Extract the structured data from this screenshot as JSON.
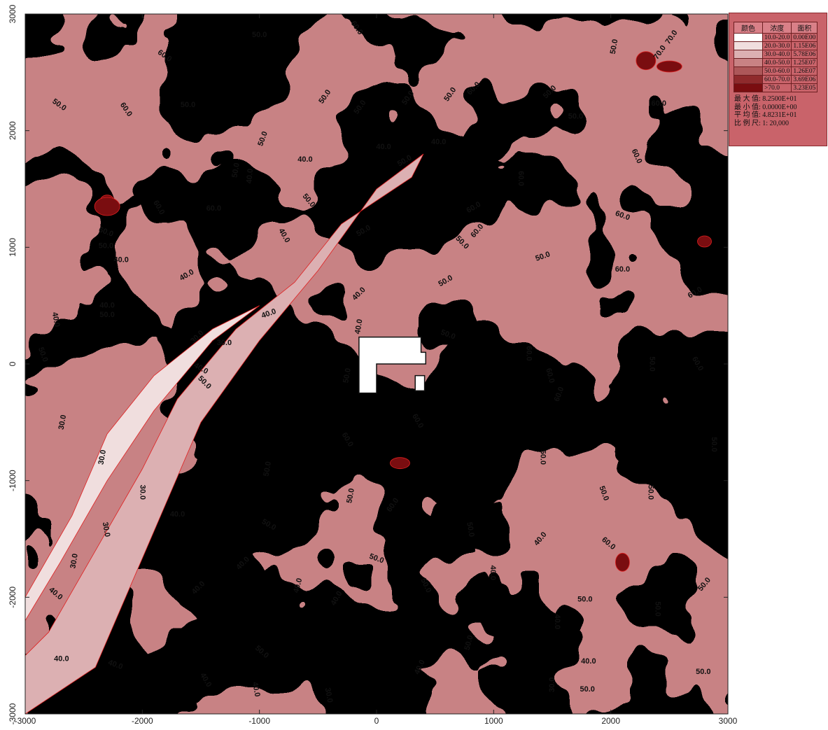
{
  "chart_data": {
    "type": "heatmap",
    "title": "",
    "xlabel": "",
    "ylabel": "",
    "xlim": [
      -3000,
      3000
    ],
    "ylim": [
      -3000,
      3000
    ],
    "x_ticks": [
      "-3000",
      "-2000",
      "-1000",
      "0",
      "1000",
      "2000",
      "3000"
    ],
    "y_ticks": [
      "-3000",
      "-2000",
      "-1000",
      "0",
      "1000",
      "2000",
      "3000"
    ],
    "x_tick_values": [
      -3000,
      -2000,
      -1000,
      0,
      1000,
      2000,
      3000
    ],
    "y_tick_values": [
      -3000,
      -2000,
      -1000,
      0,
      1000,
      2000,
      3000
    ],
    "contour_levels": [
      10,
      20,
      30,
      40,
      50,
      60,
      70
    ],
    "legend": {
      "placement": "top-right",
      "headers": [
        "颜色",
        "浓度",
        "面积"
      ],
      "rows": [
        {
          "range": "10.0-20.0",
          "area": "0.00E00",
          "color": "#ffffff"
        },
        {
          "range": "20.0-30.0",
          "area": "1.15E06",
          "color": "#f0dede"
        },
        {
          "range": "30.0-40.0",
          "area": "5.78E06",
          "color": "#dcb0b2"
        },
        {
          "range": "40.0-50.0",
          "area": "1.25E07",
          "color": "#c88284"
        },
        {
          "range": "50.0-60.0",
          "area": "1.26E07",
          "color": "#ad5759"
        },
        {
          "range": "60.0-70.0",
          "area": "3.69E06",
          "color": "#8f2a2c"
        },
        {
          "range": ">70.0",
          "area": "3.23E05",
          "color": "#7a0d10"
        }
      ],
      "stats": [
        {
          "label": "最 大 值",
          "value": "8.2500E+01"
        },
        {
          "label": "最 小 值",
          "value": "0.0000E+00"
        },
        {
          "label": "平 均 值",
          "value": "4.8231E+01"
        },
        {
          "label": "比 例 尺",
          "value": "1: 20,000"
        }
      ]
    },
    "contour_labels": [
      {
        "text": "50.0",
        "x": -1000,
        "y": 2820,
        "rot": 0
      },
      {
        "text": "60.0",
        "x": -1810,
        "y": 2640,
        "rot": 35
      },
      {
        "text": "60.0",
        "x": -170,
        "y": 2880,
        "rot": 55
      },
      {
        "text": "50.0",
        "x": 2030,
        "y": 2720,
        "rot": -80
      },
      {
        "text": "70.0",
        "x": 2520,
        "y": 2800,
        "rot": -55
      },
      {
        "text": "70.0",
        "x": 2420,
        "y": 2670,
        "rot": -55
      },
      {
        "text": "50.0",
        "x": -2710,
        "y": 2220,
        "rot": 35
      },
      {
        "text": "60.0",
        "x": -2140,
        "y": 2180,
        "rot": 55
      },
      {
        "text": "50.0",
        "x": -1610,
        "y": 2220,
        "rot": 0
      },
      {
        "text": "50.0",
        "x": -440,
        "y": 2290,
        "rot": -55
      },
      {
        "text": "50.0",
        "x": -140,
        "y": 2200,
        "rot": -55
      },
      {
        "text": "50.0",
        "x": 270,
        "y": 2280,
        "rot": -55
      },
      {
        "text": "50.0",
        "x": 630,
        "y": 2310,
        "rot": -55
      },
      {
        "text": "60.0",
        "x": 830,
        "y": 2360,
        "rot": -45
      },
      {
        "text": "50.0",
        "x": 1480,
        "y": 2330,
        "rot": -45
      },
      {
        "text": "60.0",
        "x": 2410,
        "y": 2230,
        "rot": 0
      },
      {
        "text": "50.0",
        "x": 1700,
        "y": 2120,
        "rot": 0
      },
      {
        "text": "50.0",
        "x": -970,
        "y": 1930,
        "rot": -70
      },
      {
        "text": "40.0",
        "x": 60,
        "y": 1860,
        "rot": 0
      },
      {
        "text": "40.0",
        "x": 530,
        "y": 1900,
        "rot": 0
      },
      {
        "text": "40.0",
        "x": -610,
        "y": 1750,
        "rot": 0
      },
      {
        "text": "50.0",
        "x": 240,
        "y": 1740,
        "rot": -30
      },
      {
        "text": "50.0",
        "x": -1200,
        "y": 1660,
        "rot": -80
      },
      {
        "text": "40.0",
        "x": -1080,
        "y": 1610,
        "rot": -85
      },
      {
        "text": "60.0",
        "x": 2220,
        "y": 1780,
        "rot": 65
      },
      {
        "text": "60.0",
        "x": 1230,
        "y": 1590,
        "rot": 90
      },
      {
        "text": "50.0",
        "x": -580,
        "y": 1400,
        "rot": 50
      },
      {
        "text": "60.0",
        "x": -1860,
        "y": 1340,
        "rot": 60
      },
      {
        "text": "60.0",
        "x": -1390,
        "y": 1330,
        "rot": 0
      },
      {
        "text": "60.0",
        "x": 830,
        "y": 1340,
        "rot": -30
      },
      {
        "text": "60.0",
        "x": 2100,
        "y": 1270,
        "rot": 20
      },
      {
        "text": "50.0",
        "x": -110,
        "y": 1140,
        "rot": -30
      },
      {
        "text": "60.0",
        "x": 860,
        "y": 1140,
        "rot": -50
      },
      {
        "text": "60.0",
        "x": -2310,
        "y": 1130,
        "rot": 20
      },
      {
        "text": "40.0",
        "x": -790,
        "y": 1100,
        "rot": 60
      },
      {
        "text": "50.0",
        "x": 730,
        "y": 1040,
        "rot": 45
      },
      {
        "text": "50.0",
        "x": -2310,
        "y": 1010,
        "rot": 0
      },
      {
        "text": "50.0",
        "x": 1420,
        "y": 920,
        "rot": -20
      },
      {
        "text": "40.0",
        "x": -2180,
        "y": 890,
        "rot": 0
      },
      {
        "text": "60.0",
        "x": 2100,
        "y": 810,
        "rot": 0
      },
      {
        "text": "40.0",
        "x": -1620,
        "y": 760,
        "rot": -30
      },
      {
        "text": "50.0",
        "x": 590,
        "y": 710,
        "rot": -30
      },
      {
        "text": "60.0",
        "x": 2720,
        "y": 610,
        "rot": -30
      },
      {
        "text": "40.0",
        "x": -150,
        "y": 600,
        "rot": -45
      },
      {
        "text": "40.0",
        "x": -2300,
        "y": 500,
        "rot": 0
      },
      {
        "text": "50.0",
        "x": -2300,
        "y": 420,
        "rot": 0
      },
      {
        "text": "40.0",
        "x": -2740,
        "y": 380,
        "rot": 80
      },
      {
        "text": "40.0",
        "x": -920,
        "y": 430,
        "rot": -20
      },
      {
        "text": "40.0",
        "x": -150,
        "y": 320,
        "rot": -80
      },
      {
        "text": "50.0",
        "x": 610,
        "y": 250,
        "rot": 20
      },
      {
        "text": "30.0",
        "x": -1530,
        "y": 230,
        "rot": -45
      },
      {
        "text": "30.0",
        "x": -1300,
        "y": 180,
        "rot": 0
      },
      {
        "text": "50.0",
        "x": -2850,
        "y": 80,
        "rot": 70
      },
      {
        "text": "60.0",
        "x": 1300,
        "y": 90,
        "rot": 90
      },
      {
        "text": "50.0",
        "x": 2350,
        "y": 0,
        "rot": 90
      },
      {
        "text": "60.0",
        "x": 2740,
        "y": 0,
        "rot": 60
      },
      {
        "text": "40.0",
        "x": -1500,
        "y": -40,
        "rot": 30
      },
      {
        "text": "60.0",
        "x": 1480,
        "y": -100,
        "rot": 75
      },
      {
        "text": "50.0",
        "x": -250,
        "y": -100,
        "rot": -80
      },
      {
        "text": "50.0",
        "x": -1470,
        "y": -160,
        "rot": 45
      },
      {
        "text": "60.0",
        "x": 1560,
        "y": -260,
        "rot": -70
      },
      {
        "text": "60.0",
        "x": 350,
        "y": -490,
        "rot": 60
      },
      {
        "text": "30.0",
        "x": -2680,
        "y": -500,
        "rot": -80
      },
      {
        "text": "50.0",
        "x": 2880,
        "y": -690,
        "rot": 90
      },
      {
        "text": "60.0",
        "x": -250,
        "y": -650,
        "rot": 60
      },
      {
        "text": "30.0",
        "x": -2340,
        "y": -800,
        "rot": -80
      },
      {
        "text": "50.0",
        "x": 1420,
        "y": -800,
        "rot": 90
      },
      {
        "text": "50.0",
        "x": -930,
        "y": -900,
        "rot": -80
      },
      {
        "text": "50.0",
        "x": 1940,
        "y": -1110,
        "rot": 70
      },
      {
        "text": "50.0",
        "x": 2340,
        "y": -1100,
        "rot": 90
      },
      {
        "text": "30.0",
        "x": -2000,
        "y": -1100,
        "rot": 90
      },
      {
        "text": "50.0",
        "x": -220,
        "y": -1130,
        "rot": -80
      },
      {
        "text": "40.0",
        "x": -1700,
        "y": -1290,
        "rot": 0
      },
      {
        "text": "60.0",
        "x": 140,
        "y": -1210,
        "rot": -55
      },
      {
        "text": "50.0",
        "x": -920,
        "y": -1380,
        "rot": 30
      },
      {
        "text": "30.0",
        "x": -2310,
        "y": -1420,
        "rot": 80
      },
      {
        "text": "50.0",
        "x": 800,
        "y": -1420,
        "rot": 80
      },
      {
        "text": "60.0",
        "x": 1980,
        "y": -1540,
        "rot": 40
      },
      {
        "text": "40.0",
        "x": 1400,
        "y": -1500,
        "rot": -50
      },
      {
        "text": "30.0",
        "x": -2580,
        "y": -1690,
        "rot": -80
      },
      {
        "text": "50.0",
        "x": 0,
        "y": -1670,
        "rot": 20
      },
      {
        "text": "40.0",
        "x": -1140,
        "y": -1710,
        "rot": -45
      },
      {
        "text": "40.0",
        "x": 990,
        "y": -1790,
        "rot": 90
      },
      {
        "text": "50.0",
        "x": 420,
        "y": -1900,
        "rot": 65
      },
      {
        "text": "50.0",
        "x": 2800,
        "y": -1890,
        "rot": -50
      },
      {
        "text": "40.0",
        "x": -2740,
        "y": -1970,
        "rot": 40
      },
      {
        "text": "40.0",
        "x": -1520,
        "y": -1920,
        "rot": -45
      },
      {
        "text": "40.0",
        "x": -670,
        "y": -1900,
        "rot": -75
      },
      {
        "text": "40.0",
        "x": -340,
        "y": -2010,
        "rot": -60
      },
      {
        "text": "50.0",
        "x": 1780,
        "y": -2020,
        "rot": 0
      },
      {
        "text": "50.0",
        "x": 2400,
        "y": -2100,
        "rot": 90
      },
      {
        "text": "40.0",
        "x": 1540,
        "y": -2210,
        "rot": 90
      },
      {
        "text": "50.0",
        "x": -980,
        "y": -2470,
        "rot": 40
      },
      {
        "text": "50.0",
        "x": 790,
        "y": -2390,
        "rot": -75
      },
      {
        "text": "40.0",
        "x": -2690,
        "y": -2530,
        "rot": 0
      },
      {
        "text": "40.0",
        "x": -2230,
        "y": -2580,
        "rot": 20
      },
      {
        "text": "40.0",
        "x": 1810,
        "y": -2550,
        "rot": 0
      },
      {
        "text": "40.0",
        "x": 370,
        "y": -2600,
        "rot": -65
      },
      {
        "text": "50.0",
        "x": 2790,
        "y": -2640,
        "rot": 0
      },
      {
        "text": "40.0",
        "x": -1460,
        "y": -2710,
        "rot": 60
      },
      {
        "text": "30.0",
        "x": 1500,
        "y": -2750,
        "rot": -90
      },
      {
        "text": "40.0",
        "x": -1030,
        "y": -2790,
        "rot": 80
      },
      {
        "text": "30.0",
        "x": -410,
        "y": -2840,
        "rot": 80
      },
      {
        "text": "50.0",
        "x": 1800,
        "y": -2790,
        "rot": 0
      }
    ]
  }
}
